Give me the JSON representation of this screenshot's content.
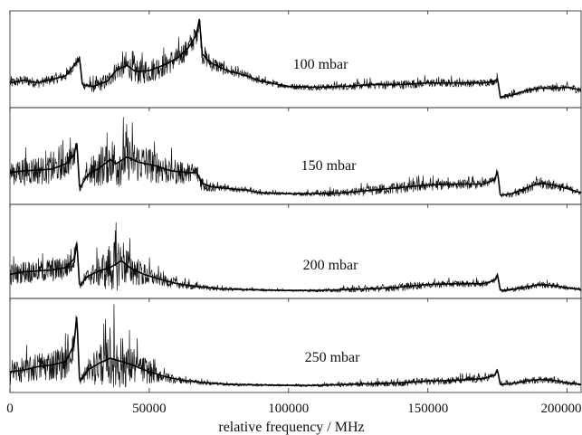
{
  "chart_data": {
    "type": "line",
    "layout": "stacked-panels",
    "xlabel": "relative frequency / MHz",
    "xlim": [
      0,
      205000
    ],
    "xticks": [
      {
        "value": 0,
        "label": "0"
      },
      {
        "value": 50000,
        "label": "50000"
      },
      {
        "value": 100000,
        "label": "100000"
      },
      {
        "value": 150000,
        "label": "150000"
      },
      {
        "value": 200000,
        "label": "200000"
      }
    ],
    "yaxis": "none",
    "grid": false,
    "panels": [
      {
        "label": "100 mbar",
        "envelope": [
          [
            0,
            0.22
          ],
          [
            5000,
            0.25
          ],
          [
            10000,
            0.22
          ],
          [
            15000,
            0.26
          ],
          [
            20000,
            0.3
          ],
          [
            23000,
            0.42
          ],
          [
            25000,
            0.5
          ],
          [
            26000,
            0.2
          ],
          [
            30000,
            0.18
          ],
          [
            35000,
            0.24
          ],
          [
            38000,
            0.36
          ],
          [
            42000,
            0.42
          ],
          [
            45000,
            0.35
          ],
          [
            50000,
            0.36
          ],
          [
            55000,
            0.42
          ],
          [
            60000,
            0.5
          ],
          [
            64000,
            0.62
          ],
          [
            66000,
            0.72
          ],
          [
            67000,
            0.78
          ],
          [
            68000,
            0.95
          ],
          [
            69000,
            0.55
          ],
          [
            72000,
            0.45
          ],
          [
            78000,
            0.36
          ],
          [
            85000,
            0.3
          ],
          [
            90000,
            0.24
          ],
          [
            100000,
            0.18
          ],
          [
            110000,
            0.17
          ],
          [
            120000,
            0.18
          ],
          [
            130000,
            0.2
          ],
          [
            140000,
            0.2
          ],
          [
            150000,
            0.22
          ],
          [
            160000,
            0.22
          ],
          [
            170000,
            0.22
          ],
          [
            174000,
            0.24
          ],
          [
            175000,
            0.27
          ],
          [
            176000,
            0.06
          ],
          [
            180000,
            0.08
          ],
          [
            185000,
            0.13
          ],
          [
            190000,
            0.16
          ],
          [
            195000,
            0.16
          ],
          [
            200000,
            0.17
          ],
          [
            205000,
            0.14
          ]
        ],
        "noise": [
          [
            0,
            0.1
          ],
          [
            25000,
            0.1
          ],
          [
            26000,
            0.08
          ],
          [
            45000,
            0.25
          ],
          [
            68000,
            0.2
          ],
          [
            80000,
            0.08
          ],
          [
            100000,
            0.05
          ],
          [
            140000,
            0.09
          ],
          [
            175000,
            0.07
          ],
          [
            176000,
            0.05
          ],
          [
            205000,
            0.08
          ]
        ]
      },
      {
        "label": "150 mbar",
        "envelope": [
          [
            0,
            0.3
          ],
          [
            5000,
            0.32
          ],
          [
            10000,
            0.33
          ],
          [
            15000,
            0.34
          ],
          [
            20000,
            0.4
          ],
          [
            23000,
            0.5
          ],
          [
            24000,
            0.65
          ],
          [
            25000,
            0.12
          ],
          [
            28000,
            0.28
          ],
          [
            32000,
            0.35
          ],
          [
            36000,
            0.45
          ],
          [
            38000,
            0.4
          ],
          [
            42000,
            0.48
          ],
          [
            46000,
            0.42
          ],
          [
            52000,
            0.38
          ],
          [
            58000,
            0.32
          ],
          [
            64000,
            0.3
          ],
          [
            67000,
            0.3
          ],
          [
            69000,
            0.18
          ],
          [
            72000,
            0.14
          ],
          [
            78000,
            0.12
          ],
          [
            85000,
            0.1
          ],
          [
            90000,
            0.07
          ],
          [
            100000,
            0.06
          ],
          [
            110000,
            0.06
          ],
          [
            120000,
            0.07
          ],
          [
            130000,
            0.1
          ],
          [
            140000,
            0.13
          ],
          [
            150000,
            0.16
          ],
          [
            160000,
            0.17
          ],
          [
            170000,
            0.17
          ],
          [
            174000,
            0.22
          ],
          [
            175000,
            0.32
          ],
          [
            176000,
            0.04
          ],
          [
            180000,
            0.06
          ],
          [
            185000,
            0.12
          ],
          [
            190000,
            0.18
          ],
          [
            195000,
            0.16
          ],
          [
            200000,
            0.12
          ],
          [
            205000,
            0.07
          ]
        ],
        "noise": [
          [
            0,
            0.28
          ],
          [
            22000,
            0.28
          ],
          [
            25000,
            0.06
          ],
          [
            30000,
            0.3
          ],
          [
            38000,
            0.5
          ],
          [
            50000,
            0.35
          ],
          [
            68000,
            0.18
          ],
          [
            75000,
            0.06
          ],
          [
            100000,
            0.03
          ],
          [
            140000,
            0.12
          ],
          [
            175000,
            0.08
          ],
          [
            176000,
            0.05
          ],
          [
            190000,
            0.12
          ],
          [
            205000,
            0.05
          ]
        ]
      },
      {
        "label": "200 mbar",
        "envelope": [
          [
            0,
            0.22
          ],
          [
            5000,
            0.25
          ],
          [
            10000,
            0.26
          ],
          [
            15000,
            0.27
          ],
          [
            20000,
            0.3
          ],
          [
            23000,
            0.4
          ],
          [
            24000,
            0.6
          ],
          [
            25000,
            0.08
          ],
          [
            28000,
            0.2
          ],
          [
            32000,
            0.26
          ],
          [
            36000,
            0.3
          ],
          [
            40000,
            0.38
          ],
          [
            43000,
            0.3
          ],
          [
            48000,
            0.22
          ],
          [
            54000,
            0.16
          ],
          [
            60000,
            0.11
          ],
          [
            66000,
            0.08
          ],
          [
            75000,
            0.05
          ],
          [
            85000,
            0.04
          ],
          [
            100000,
            0.03
          ],
          [
            110000,
            0.03
          ],
          [
            120000,
            0.04
          ],
          [
            130000,
            0.05
          ],
          [
            140000,
            0.07
          ],
          [
            150000,
            0.1
          ],
          [
            160000,
            0.11
          ],
          [
            170000,
            0.11
          ],
          [
            174000,
            0.15
          ],
          [
            175000,
            0.22
          ],
          [
            176000,
            0.03
          ],
          [
            180000,
            0.04
          ],
          [
            185000,
            0.07
          ],
          [
            190000,
            0.1
          ],
          [
            195000,
            0.09
          ],
          [
            200000,
            0.06
          ],
          [
            205000,
            0.04
          ]
        ],
        "noise": [
          [
            0,
            0.22
          ],
          [
            22000,
            0.25
          ],
          [
            25000,
            0.05
          ],
          [
            30000,
            0.25
          ],
          [
            38000,
            0.55
          ],
          [
            45000,
            0.3
          ],
          [
            55000,
            0.12
          ],
          [
            70000,
            0.05
          ],
          [
            100000,
            0.02
          ],
          [
            140000,
            0.08
          ],
          [
            175000,
            0.06
          ],
          [
            176000,
            0.04
          ],
          [
            190000,
            0.07
          ],
          [
            205000,
            0.03
          ]
        ]
      },
      {
        "label": "250 mbar",
        "envelope": [
          [
            0,
            0.18
          ],
          [
            5000,
            0.2
          ],
          [
            10000,
            0.24
          ],
          [
            15000,
            0.26
          ],
          [
            20000,
            0.3
          ],
          [
            23000,
            0.5
          ],
          [
            24000,
            0.85
          ],
          [
            25000,
            0.06
          ],
          [
            28000,
            0.2
          ],
          [
            32000,
            0.28
          ],
          [
            36000,
            0.34
          ],
          [
            40000,
            0.3
          ],
          [
            44000,
            0.26
          ],
          [
            50000,
            0.18
          ],
          [
            56000,
            0.12
          ],
          [
            62000,
            0.08
          ],
          [
            70000,
            0.05
          ],
          [
            80000,
            0.03
          ],
          [
            100000,
            0.02
          ],
          [
            110000,
            0.02
          ],
          [
            120000,
            0.03
          ],
          [
            130000,
            0.04
          ],
          [
            140000,
            0.05
          ],
          [
            150000,
            0.07
          ],
          [
            160000,
            0.08
          ],
          [
            170000,
            0.1
          ],
          [
            174000,
            0.14
          ],
          [
            175000,
            0.2
          ],
          [
            176000,
            0.03
          ],
          [
            180000,
            0.04
          ],
          [
            185000,
            0.07
          ],
          [
            190000,
            0.09
          ],
          [
            195000,
            0.08
          ],
          [
            200000,
            0.05
          ],
          [
            205000,
            0.03
          ]
        ],
        "noise": [
          [
            0,
            0.25
          ],
          [
            22000,
            0.35
          ],
          [
            25000,
            0.05
          ],
          [
            30000,
            0.35
          ],
          [
            38000,
            0.65
          ],
          [
            45000,
            0.35
          ],
          [
            55000,
            0.12
          ],
          [
            70000,
            0.04
          ],
          [
            100000,
            0.02
          ],
          [
            140000,
            0.07
          ],
          [
            170000,
            0.08
          ],
          [
            176000,
            0.04
          ],
          [
            190000,
            0.07
          ],
          [
            205000,
            0.03
          ]
        ]
      }
    ]
  }
}
